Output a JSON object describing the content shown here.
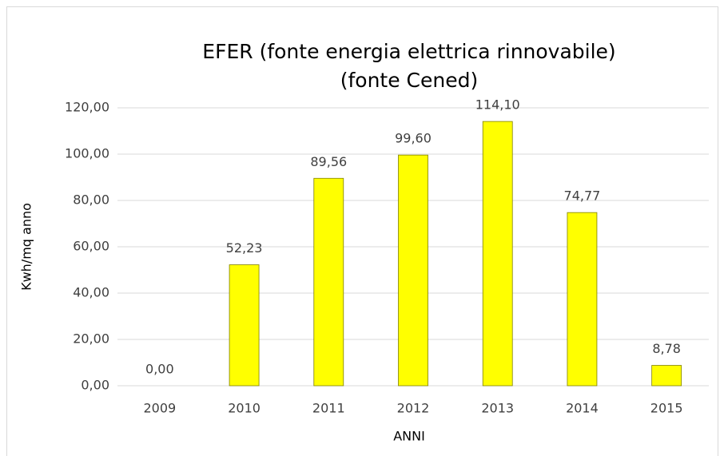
{
  "chart_data": {
    "type": "bar",
    "title": [
      "EFER (fonte energia elettrica rinnovabile)",
      "(fonte Cened)"
    ],
    "x_label": "ANNI",
    "y_label": "Kwh/mq anno",
    "categories": [
      "2009",
      "2010",
      "2011",
      "2012",
      "2013",
      "2014",
      "2015"
    ],
    "values": [
      0,
      52.23,
      89.56,
      99.6,
      114.1,
      74.77,
      8.78
    ],
    "value_labels": [
      "0,00",
      "52,23",
      "89,56",
      "99,60",
      "114,10",
      "74,77",
      "8,78"
    ],
    "color": "#ffff00",
    "ylim": [
      0,
      120
    ],
    "yticks": [
      {
        "value": 0,
        "label": "0,00"
      },
      {
        "value": 20,
        "label": "20,00"
      },
      {
        "value": 40,
        "label": "40,00"
      },
      {
        "value": 60,
        "label": "60,00"
      },
      {
        "value": 80,
        "label": "80,00"
      },
      {
        "value": 100,
        "label": "100,00"
      },
      {
        "value": 120,
        "label": "120,00"
      }
    ],
    "grid": true
  }
}
